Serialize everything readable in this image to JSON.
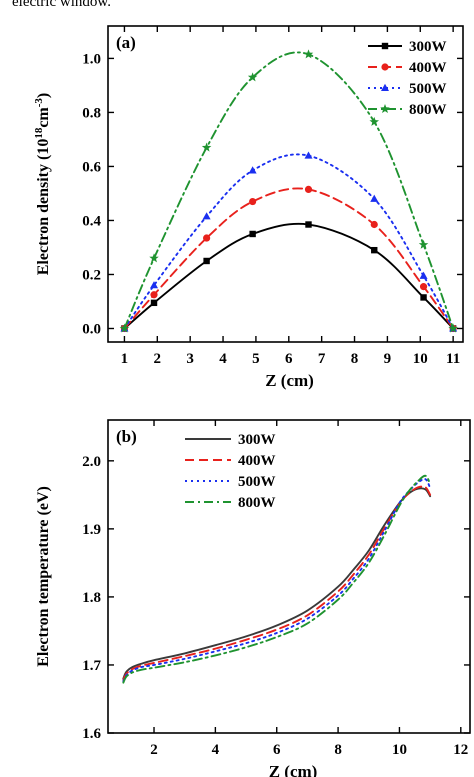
{
  "caption_fragment": "electric window.",
  "chart_data": [
    {
      "type": "line",
      "panel_label": "(a)",
      "xlabel": "Z (cm)",
      "ylabel_main": "Electron density (10",
      "ylabel_sup1": "18",
      "ylabel_mid": "cm",
      "ylabel_sup2": "-3",
      "ylabel_end": ")",
      "xlim": [
        0.5,
        11.3
      ],
      "ylim": [
        -0.05,
        1.12
      ],
      "xticks": [
        1,
        2,
        3,
        4,
        5,
        6,
        7,
        8,
        9,
        10,
        11
      ],
      "yticks": [
        0.0,
        0.2,
        0.4,
        0.6,
        0.8,
        1.0
      ],
      "ytick_labels": [
        "0.0",
        "0.2",
        "0.4",
        "0.6",
        "0.8",
        "1.0"
      ],
      "legend_position": "top-right",
      "series": [
        {
          "name": "300W",
          "color": "#000000",
          "dash": "solid",
          "marker": "square",
          "x": [
            1.0,
            1.9,
            3.5,
            4.9,
            6.6,
            8.6,
            10.1,
            11.0
          ],
          "y": [
            0.0,
            0.095,
            0.25,
            0.35,
            0.385,
            0.29,
            0.115,
            0.0
          ]
        },
        {
          "name": "400W",
          "color": "#e8211c",
          "dash": "dash",
          "marker": "circle",
          "x": [
            1.0,
            1.9,
            3.5,
            4.9,
            6.6,
            8.6,
            10.1,
            11.0
          ],
          "y": [
            0.0,
            0.125,
            0.335,
            0.47,
            0.515,
            0.385,
            0.155,
            0.0
          ]
        },
        {
          "name": "500W",
          "color": "#1a2ff0",
          "dash": "dot",
          "marker": "triangle",
          "x": [
            1.0,
            1.9,
            3.5,
            4.9,
            6.6,
            8.6,
            10.1,
            11.0
          ],
          "y": [
            0.0,
            0.16,
            0.415,
            0.585,
            0.64,
            0.48,
            0.195,
            0.0
          ]
        },
        {
          "name": "800W",
          "color": "#1f9330",
          "dash": "dashdot",
          "marker": "star",
          "x": [
            1.0,
            1.9,
            3.5,
            4.9,
            6.6,
            8.6,
            10.1,
            11.0
          ],
          "y": [
            0.0,
            0.26,
            0.67,
            0.93,
            1.015,
            0.765,
            0.31,
            0.0
          ]
        }
      ]
    },
    {
      "type": "line",
      "panel_label": "(b)",
      "xlabel": "Z (cm)",
      "ylabel": "Electron temperature (eV)",
      "xlim": [
        0.5,
        12.3
      ],
      "ylim": [
        1.6,
        2.06
      ],
      "xticks": [
        2,
        4,
        6,
        8,
        10,
        12
      ],
      "yticks": [
        1.6,
        1.7,
        1.8,
        1.9,
        2.0
      ],
      "ytick_labels": [
        "1.6",
        "1.7",
        "1.8",
        "1.9",
        "2.0"
      ],
      "legend_position": "top-left",
      "series": [
        {
          "name": "300W",
          "color": "#3a3a3a",
          "dash": "solid",
          "x": [
            1.0,
            1.1,
            1.3,
            1.6,
            2.0,
            3.0,
            4.0,
            5.0,
            6.0,
            7.0,
            8.0,
            8.5,
            9.0,
            9.5,
            10.0,
            10.3,
            10.6,
            10.85,
            11.0
          ],
          "y": [
            1.68,
            1.69,
            1.697,
            1.702,
            1.707,
            1.717,
            1.729,
            1.742,
            1.758,
            1.78,
            1.815,
            1.84,
            1.868,
            1.905,
            1.938,
            1.952,
            1.959,
            1.958,
            1.948
          ]
        },
        {
          "name": "400W",
          "color": "#e8211c",
          "dash": "dash",
          "x": [
            1.0,
            1.1,
            1.3,
            1.6,
            2.0,
            3.0,
            4.0,
            5.0,
            6.0,
            7.0,
            8.0,
            8.5,
            9.0,
            9.5,
            10.0,
            10.3,
            10.6,
            10.85,
            11.0
          ],
          "y": [
            1.678,
            1.687,
            1.694,
            1.699,
            1.703,
            1.713,
            1.724,
            1.737,
            1.752,
            1.773,
            1.808,
            1.833,
            1.862,
            1.9,
            1.937,
            1.952,
            1.961,
            1.961,
            1.95
          ]
        },
        {
          "name": "500W",
          "color": "#1a2ff0",
          "dash": "dot",
          "x": [
            1.0,
            1.1,
            1.3,
            1.6,
            2.0,
            3.0,
            4.0,
            5.0,
            6.0,
            7.0,
            8.0,
            8.5,
            9.0,
            9.5,
            10.0,
            10.3,
            10.6,
            10.85,
            11.0
          ],
          "y": [
            1.676,
            1.685,
            1.692,
            1.697,
            1.7,
            1.709,
            1.72,
            1.732,
            1.747,
            1.768,
            1.802,
            1.827,
            1.856,
            1.896,
            1.938,
            1.955,
            1.968,
            1.973,
            1.96
          ]
        },
        {
          "name": "800W",
          "color": "#1f9330",
          "dash": "dashdot",
          "x": [
            1.0,
            1.1,
            1.3,
            1.6,
            2.0,
            3.0,
            4.0,
            5.0,
            6.0,
            7.0,
            8.0,
            8.5,
            9.0,
            9.5,
            10.0,
            10.3,
            10.6,
            10.85,
            11.0
          ],
          "y": [
            1.674,
            1.683,
            1.689,
            1.693,
            1.696,
            1.704,
            1.714,
            1.726,
            1.741,
            1.761,
            1.796,
            1.821,
            1.85,
            1.89,
            1.934,
            1.955,
            1.97,
            1.978,
            1.966
          ]
        }
      ]
    }
  ]
}
